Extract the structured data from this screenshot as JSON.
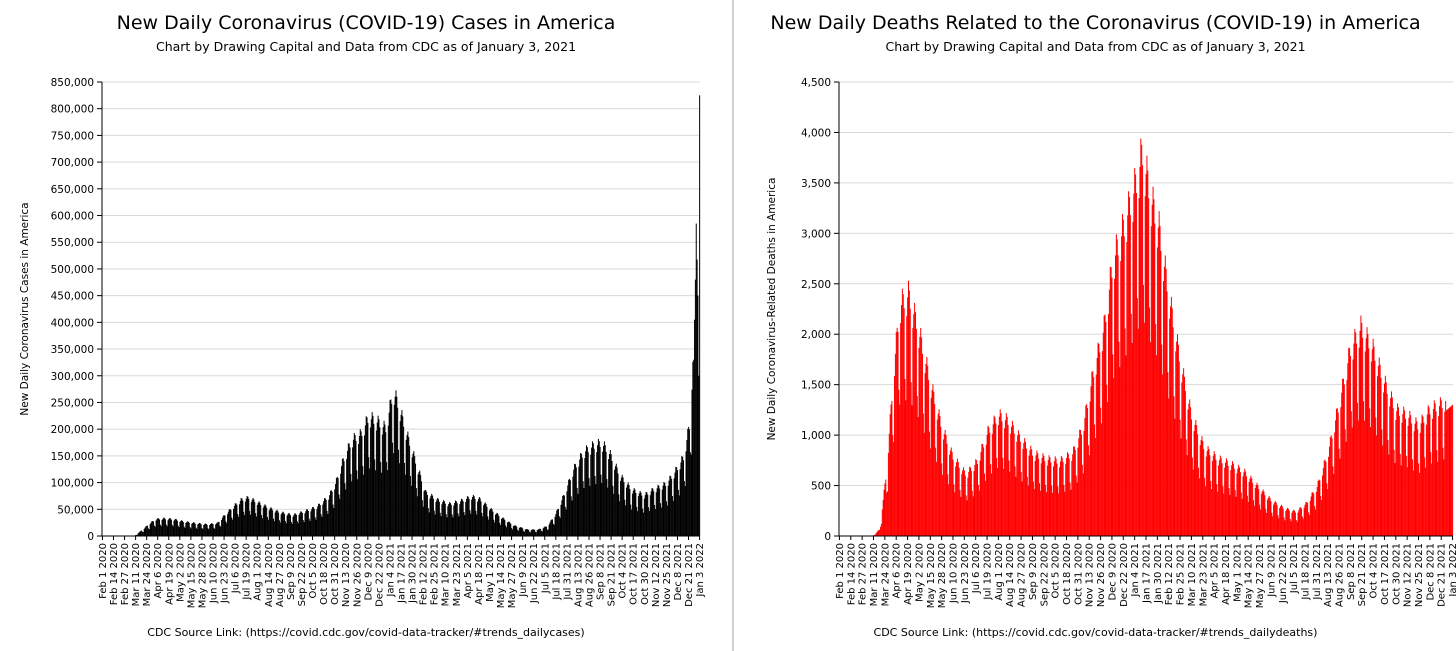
{
  "chart_data": [
    {
      "type": "bar",
      "title": "New Daily Coronavirus (COVID-19) Cases in America",
      "subtitle": "Chart by Drawing Capital and Data from CDC as of January 3, 2021",
      "ylabel": "New Daily Coronavirus Cases in America",
      "xlabel": "",
      "source": "CDC Source Link: (https://covid.cdc.gov/covid-data-tracker/#trends_dailycases)",
      "color": "#000000",
      "grid": true,
      "ylim": [
        0,
        850000
      ],
      "yticks": [
        0,
        50000,
        100000,
        150000,
        200000,
        250000,
        300000,
        350000,
        400000,
        450000,
        500000,
        550000,
        600000,
        650000,
        700000,
        750000,
        800000,
        850000
      ],
      "ytick_labels": [
        "0",
        "50,000",
        "100,000",
        "150,000",
        "200,000",
        "250,000",
        "300,000",
        "350,000",
        "400,000",
        "450,000",
        "500,000",
        "550,000",
        "600,000",
        "650,000",
        "700,000",
        "750,000",
        "800,000",
        "850,000"
      ],
      "xtick_labels": [
        "Feb 1 2020",
        "Feb 14 2020",
        "Feb 27 2020",
        "Mar 11 2020",
        "Mar 24 2020",
        "Apr 6 2020",
        "Apr 19 2020",
        "May 2 2020",
        "May 15 2020",
        "May 28 2020",
        "Jun 10 2020",
        "Jun 23 2020",
        "Jul 6 2020",
        "Jul 19 2020",
        "Aug 1 2020",
        "Aug 14 2020",
        "Aug 27 2020",
        "Sep 9 2020",
        "Sep 22 2020",
        "Oct 5 2020",
        "Oct 18 2020",
        "Oct 31 2020",
        "Nov 13 2020",
        "Nov 26 2020",
        "Dec 9 2020",
        "Dec 22 2020",
        "Jan 4 2021",
        "Jan 17 2021",
        "Jan 30 2021",
        "Feb 12 2021",
        "Feb 25 2021",
        "Mar 10 2021",
        "Mar 23 2021",
        "Apr 5 2021",
        "Apr 18 2021",
        "May 1 2021",
        "May 14 2021",
        "May 27 2021",
        "Jun 9 2021",
        "Jun 22 2021",
        "Jul 5 2021",
        "Jul 18 2021",
        "Jul 31 2021",
        "Aug 13 2021",
        "Aug 26 2021",
        "Sep 8 2021",
        "Sep 21 2021",
        "Oct 4 2021",
        "Oct 17 2021",
        "Oct 30 2021",
        "Nov 12 2021",
        "Nov 25 2021",
        "Dec 8 2021",
        "Dec 21 2021",
        "Jan 3 2022"
      ],
      "x_range": [
        "2020-02-01",
        "2022-01-03"
      ],
      "series": [
        {
          "keypoints": [
            [
              "2020-02-01",
              0
            ],
            [
              "2020-02-28",
              0
            ],
            [
              "2020-03-10",
              500
            ],
            [
              "2020-03-20",
              12000
            ],
            [
              "2020-03-28",
              22000
            ],
            [
              "2020-04-04",
              29000
            ],
            [
              "2020-04-12",
              30000
            ],
            [
              "2020-04-24",
              29000
            ],
            [
              "2020-05-06",
              25000
            ],
            [
              "2020-05-20",
              22000
            ],
            [
              "2020-06-03",
              20000
            ],
            [
              "2020-06-15",
              22000
            ],
            [
              "2020-06-25",
              38000
            ],
            [
              "2020-07-05",
              52000
            ],
            [
              "2020-07-13",
              62000
            ],
            [
              "2020-07-22",
              66000
            ],
            [
              "2020-08-01",
              58000
            ],
            [
              "2020-08-15",
              48000
            ],
            [
              "2020-08-27",
              41000
            ],
            [
              "2020-09-12",
              36000
            ],
            [
              "2020-09-25",
              42000
            ],
            [
              "2020-10-10",
              50000
            ],
            [
              "2020-10-24",
              68000
            ],
            [
              "2020-11-01",
              90000
            ],
            [
              "2020-11-10",
              130000
            ],
            [
              "2020-11-20",
              165000
            ],
            [
              "2020-12-01",
              175000
            ],
            [
              "2020-12-10",
              205000
            ],
            [
              "2020-12-22",
              195000
            ],
            [
              "2020-12-30",
              185000
            ],
            [
              "2021-01-08",
              250000
            ],
            [
              "2021-01-15",
              220000
            ],
            [
              "2021-01-25",
              170000
            ],
            [
              "2021-02-05",
              120000
            ],
            [
              "2021-02-15",
              75000
            ],
            [
              "2021-03-01",
              62000
            ],
            [
              "2021-03-15",
              55000
            ],
            [
              "2021-03-28",
              60000
            ],
            [
              "2021-04-10",
              68000
            ],
            [
              "2021-04-20",
              63000
            ],
            [
              "2021-05-01",
              48000
            ],
            [
              "2021-05-15",
              32000
            ],
            [
              "2021-05-30",
              18000
            ],
            [
              "2021-06-15",
              11000
            ],
            [
              "2021-06-27",
              11000
            ],
            [
              "2021-07-08",
              17000
            ],
            [
              "2021-07-18",
              38000
            ],
            [
              "2021-07-28",
              72000
            ],
            [
              "2021-08-08",
              115000
            ],
            [
              "2021-08-20",
              145000
            ],
            [
              "2021-08-31",
              155000
            ],
            [
              "2021-09-10",
              160000
            ],
            [
              "2021-09-20",
              140000
            ],
            [
              "2021-10-01",
              105000
            ],
            [
              "2021-10-15",
              80000
            ],
            [
              "2021-10-30",
              70000
            ],
            [
              "2021-11-10",
              80000
            ],
            [
              "2021-11-25",
              90000
            ],
            [
              "2021-12-05",
              110000
            ],
            [
              "2021-12-15",
              135000
            ],
            [
              "2021-12-22",
              190000
            ],
            [
              "2021-12-27",
              330000
            ],
            [
              "2021-12-29",
              480000
            ],
            [
              "2021-12-30",
              585000
            ],
            [
              "2022-01-01",
              450000
            ],
            [
              "2022-01-02",
              300000
            ],
            [
              "2022-01-03",
              825000
            ]
          ]
        }
      ]
    },
    {
      "type": "bar",
      "title": "New Daily Deaths Related to the Coronavirus (COVID-19) in America",
      "subtitle": "Chart by Drawing Capital and Data from CDC as of January 3, 2021",
      "ylabel": "New Daily Coronavirus-Related Deaths in America",
      "xlabel": "",
      "source": "CDC Source Link: (https://covid.cdc.gov/covid-data-tracker/#trends_dailydeaths)",
      "color": "#ff0000",
      "grid": true,
      "ylim": [
        0,
        4500
      ],
      "yticks": [
        0,
        500,
        1000,
        1500,
        2000,
        2500,
        3000,
        3500,
        4000,
        4500
      ],
      "ytick_labels": [
        "0",
        "500",
        "1,000",
        "1,500",
        "2,000",
        "2,500",
        "3,000",
        "3,500",
        "4,000",
        "4,500"
      ],
      "xtick_labels": [
        "Feb 1 2020",
        "Feb 14 2020",
        "Feb 27 2020",
        "Mar 11 2020",
        "Mar 24 2020",
        "Apr 6 2020",
        "Apr 19 2020",
        "May 2 2020",
        "May 15 2020",
        "May 28 2020",
        "Jun 10 2020",
        "Jun 23 2020",
        "Jul 6 2020",
        "Jul 19 2020",
        "Aug 1 2020",
        "Aug 14 2020",
        "Aug 27 2020",
        "Sep 9 2020",
        "Sep 22 2020",
        "Oct 5 2020",
        "Oct 18 2020",
        "Oct 31 2020",
        "Nov 13 2020",
        "Nov 26 2020",
        "Dec 9 2020",
        "Dec 22 2020",
        "Jan 4 2021",
        "Jan 17 2021",
        "Jan 30 2021",
        "Feb 12 2021",
        "Feb 25 2021",
        "Mar 10 2021",
        "Mar 23 2021",
        "Apr 5 2021",
        "Apr 18 2021",
        "May 1 2021",
        "May 14 2021",
        "May 27 2021",
        "Jun 9 2021",
        "Jun 22 2021",
        "Jul 5 2021",
        "Jul 18 2021",
        "Jul 31 2021",
        "Aug 13 2021",
        "Aug 26 2021",
        "Sep 8 2021",
        "Sep 21 2021",
        "Oct 4 2021",
        "Oct 17 2021",
        "Oct 30 2021",
        "Nov 12 2021",
        "Nov 25 2021",
        "Dec 8 2021",
        "Dec 21 2021",
        "Jan 3 2022"
      ],
      "x_range": [
        "2020-02-01",
        "2022-01-03"
      ],
      "series": [
        {
          "keypoints": [
            [
              "2020-02-01",
              0
            ],
            [
              "2020-03-10",
              0
            ],
            [
              "2020-03-18",
              60
            ],
            [
              "2020-03-26",
              600
            ],
            [
              "2020-04-03",
              1500
            ],
            [
              "2020-04-10",
              2100
            ],
            [
              "2020-04-20",
              2200
            ],
            [
              "2020-05-01",
              1900
            ],
            [
              "2020-05-15",
              1400
            ],
            [
              "2020-05-28",
              1000
            ],
            [
              "2020-06-10",
              720
            ],
            [
              "2020-06-25",
              560
            ],
            [
              "2020-07-08",
              680
            ],
            [
              "2020-07-20",
              950
            ],
            [
              "2020-08-01",
              1100
            ],
            [
              "2020-08-12",
              1050
            ],
            [
              "2020-08-25",
              900
            ],
            [
              "2020-09-10",
              750
            ],
            [
              "2020-09-25",
              700
            ],
            [
              "2020-10-10",
              680
            ],
            [
              "2020-10-25",
              750
            ],
            [
              "2020-11-06",
              1000
            ],
            [
              "2020-11-18",
              1500
            ],
            [
              "2020-11-30",
              1900
            ],
            [
              "2020-12-10",
              2500
            ],
            [
              "2020-12-22",
              2800
            ],
            [
              "2021-01-05",
              3200
            ],
            [
              "2021-01-13",
              3500
            ],
            [
              "2021-01-22",
              3100
            ],
            [
              "2021-02-01",
              2800
            ],
            [
              "2021-02-12",
              2200
            ],
            [
              "2021-02-25",
              1600
            ],
            [
              "2021-03-10",
              1100
            ],
            [
              "2021-03-25",
              800
            ],
            [
              "2021-04-10",
              700
            ],
            [
              "2021-04-25",
              650
            ],
            [
              "2021-05-10",
              580
            ],
            [
              "2021-05-25",
              450
            ],
            [
              "2021-06-10",
              320
            ],
            [
              "2021-06-25",
              250
            ],
            [
              "2021-07-08",
              220
            ],
            [
              "2021-07-20",
              300
            ],
            [
              "2021-08-01",
              450
            ],
            [
              "2021-08-13",
              750
            ],
            [
              "2021-08-26",
              1200
            ],
            [
              "2021-09-08",
              1700
            ],
            [
              "2021-09-20",
              1900
            ],
            [
              "2021-10-04",
              1700
            ],
            [
              "2021-10-17",
              1400
            ],
            [
              "2021-10-30",
              1150
            ],
            [
              "2021-11-12",
              1100
            ],
            [
              "2021-11-25",
              1000
            ],
            [
              "2021-12-08",
              1150
            ],
            [
              "2021-12-21",
              1200
            ],
            [
              "2022-01-03",
              1300
            ]
          ]
        }
      ]
    }
  ]
}
